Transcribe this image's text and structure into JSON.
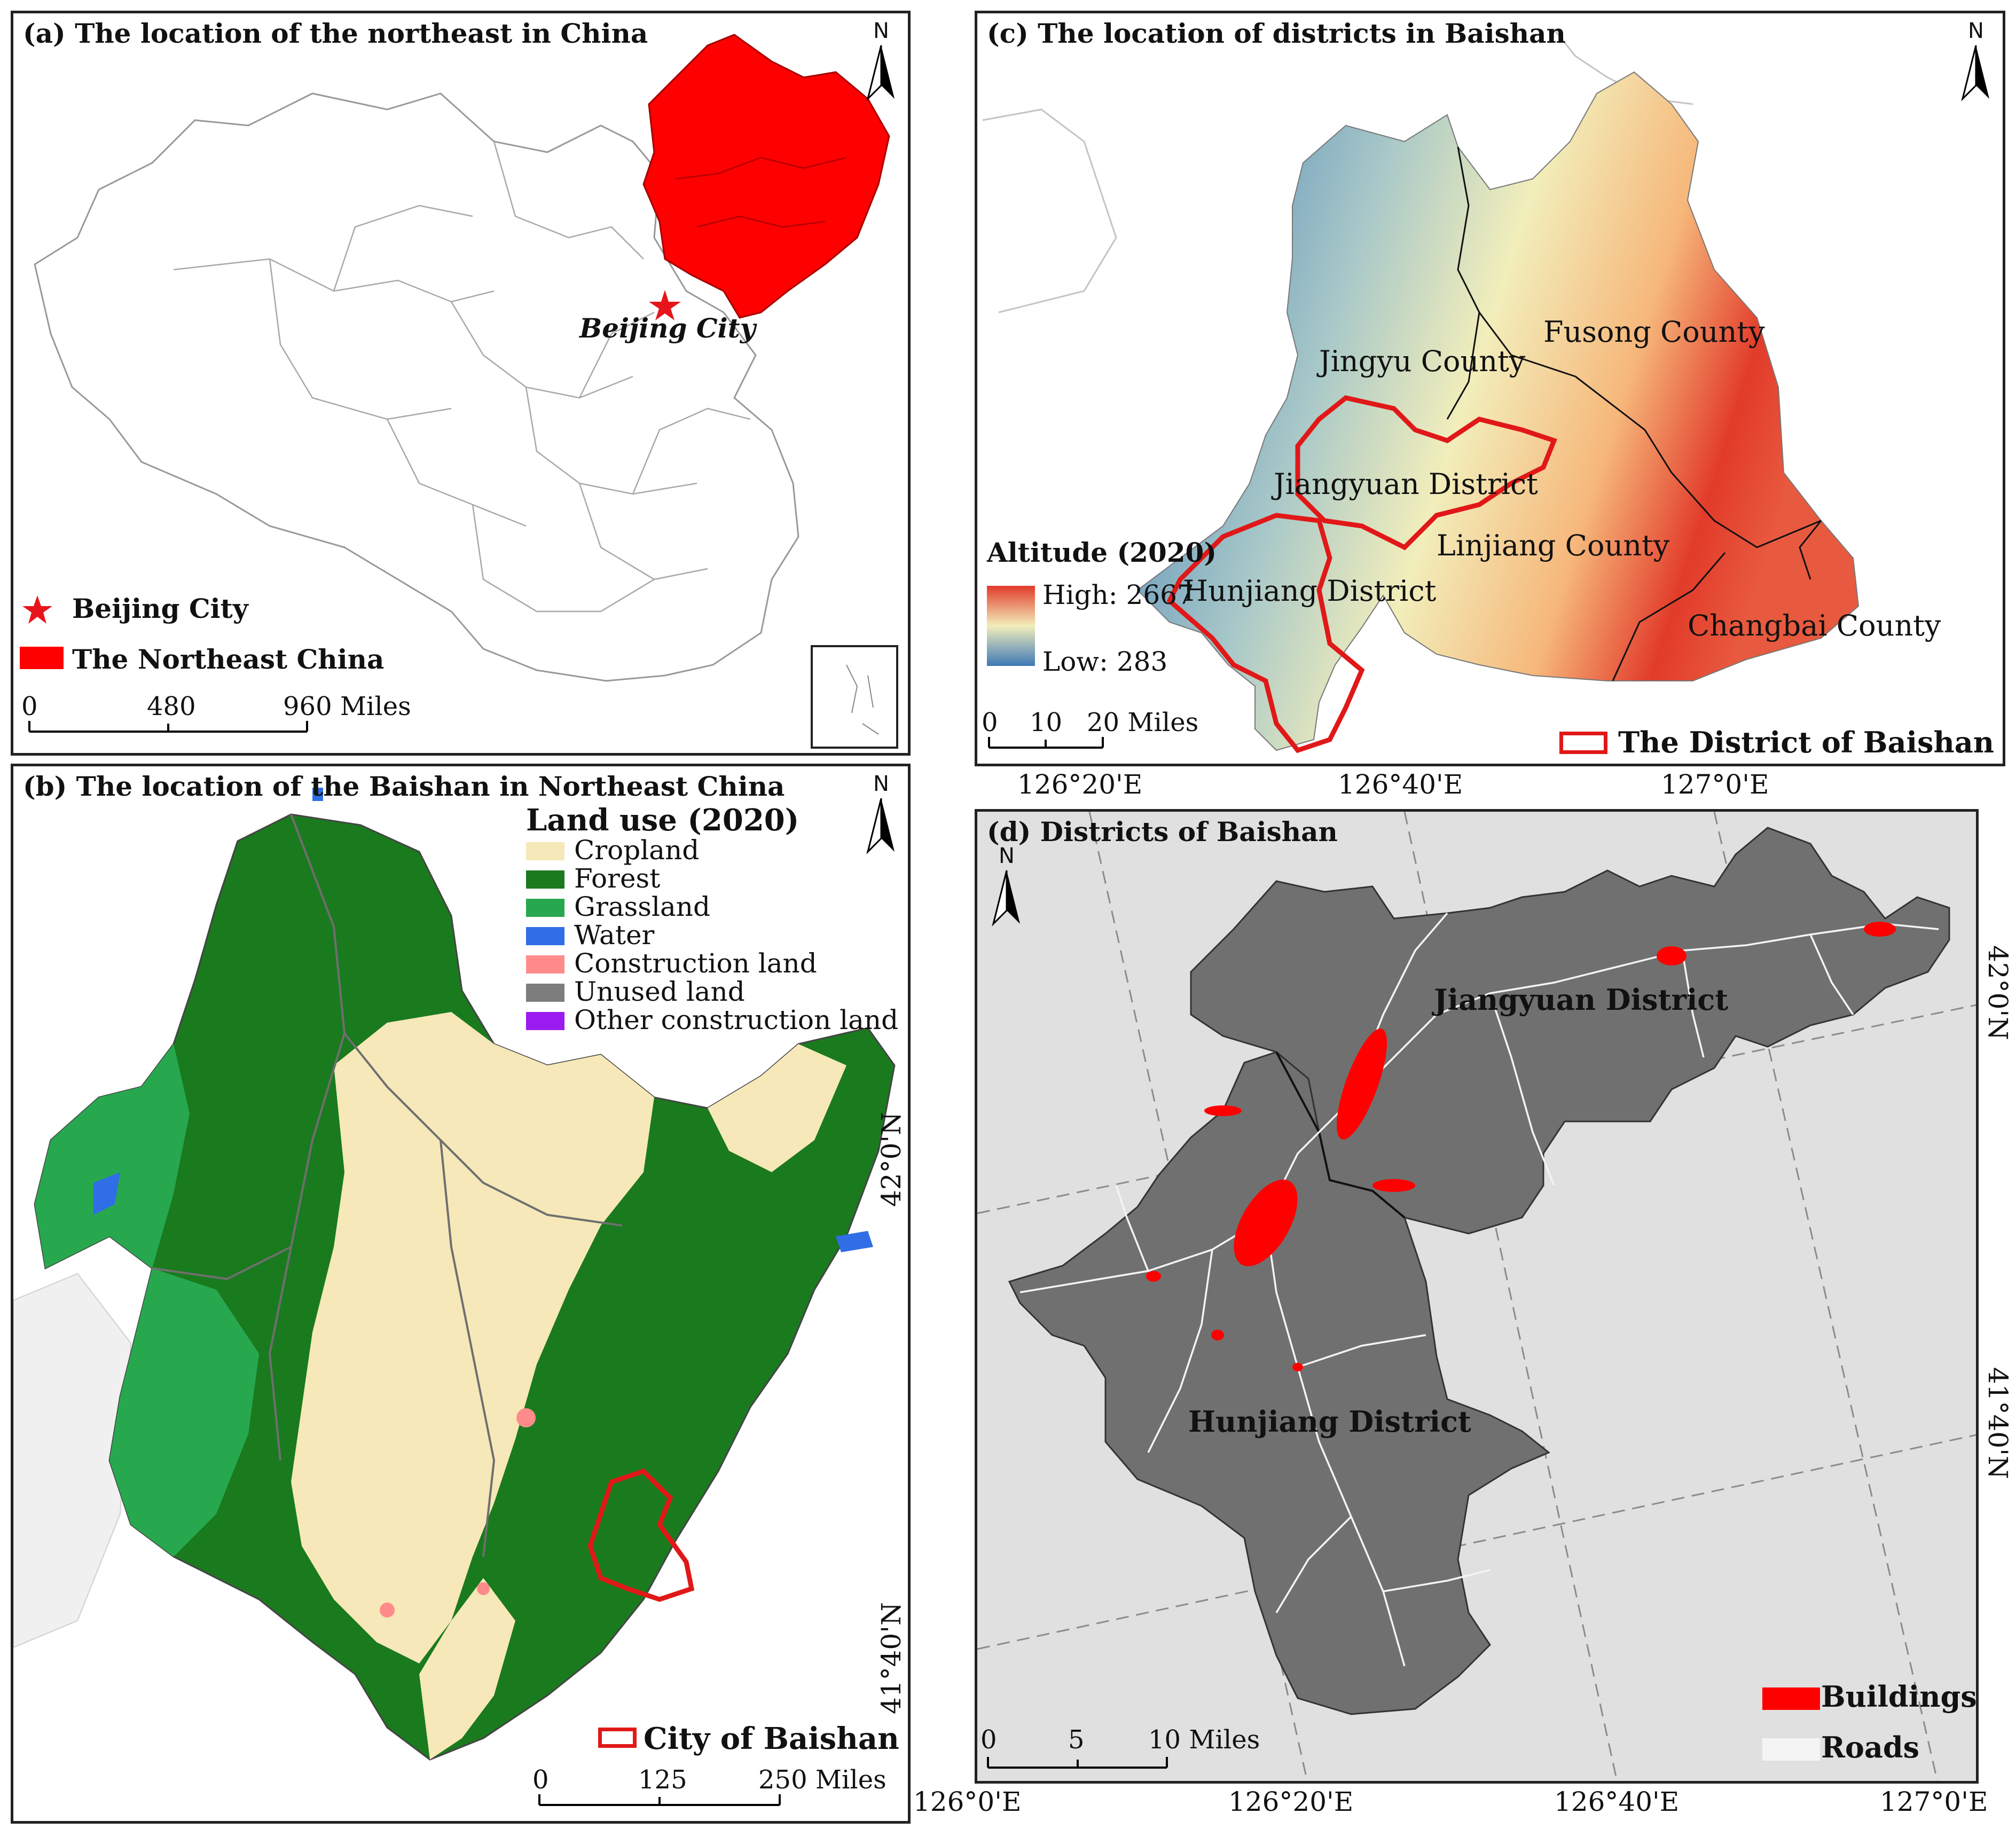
{
  "panel_a": {
    "title": "(a) The location of the northeast in China",
    "north": "N",
    "city_label": "Beijing City",
    "legend": [
      {
        "label": "Beijing City",
        "symbol": "star",
        "color": "#e8141b"
      },
      {
        "label": "The Northeast China",
        "symbol": "box",
        "color": "#ff0000"
      }
    ],
    "scale": {
      "ticks": [
        "0",
        "480",
        "960 Miles"
      ]
    }
  },
  "panel_b": {
    "title": "(b) The location of the Baishan in Northeast China",
    "north": "N",
    "legend_title": "Land use (2020)",
    "legend": [
      {
        "label": "Cropland",
        "color": "#f6e8b8"
      },
      {
        "label": "Forest",
        "color": "#1a7a1e"
      },
      {
        "label": "Grassland",
        "color": "#27a84f"
      },
      {
        "label": "Water",
        "color": "#2f6ee6"
      },
      {
        "label": "Construction land",
        "color": "#ff8b8b"
      },
      {
        "label": "Unused land",
        "color": "#7d7d7d"
      },
      {
        "label": "Other construction land",
        "color": "#9b1bf0"
      }
    ],
    "boundary_legend": "City of Baishan",
    "scale": {
      "ticks": [
        "0",
        "125",
        "250 Miles"
      ]
    }
  },
  "panel_c": {
    "title": "(c) The location of districts in Baishan",
    "north": "N",
    "legend_title": "Altitude (2020)",
    "high": "High: 2667",
    "low": "Low: 283",
    "districts": [
      "Fusong County",
      "Jingyu County",
      "Jiangyuan District",
      "Linjiang County",
      "Hunjiang District",
      "Changbai County"
    ],
    "boundary_legend": "The District of Baishan City",
    "scale": {
      "ticks": [
        "0",
        "10",
        "20 Miles"
      ]
    }
  },
  "panel_d": {
    "title": "(d) Districts of Baishan",
    "north": "N",
    "districts": [
      "Jiangyuan District",
      "Hunjiang District"
    ],
    "top_coords": [
      "126°20'E",
      "126°40'E",
      "127°0'E"
    ],
    "bottom_coords": [
      "126°0'E",
      "126°20'E",
      "126°40'E",
      "127°0'E"
    ],
    "left_coords": [
      "42°0'N",
      "41°40'N"
    ],
    "right_coords": [
      "42°0'N",
      "41°40'N"
    ],
    "legend": [
      {
        "label": "Buildings",
        "color": "#ff0000"
      },
      {
        "label": "Roads",
        "color": "#f4f4f4"
      }
    ],
    "scale": {
      "ticks": [
        "0",
        "5",
        "10 Miles"
      ]
    }
  },
  "colors": {
    "northeast": "#ff0000",
    "forest": "#1a7a1e",
    "cropland": "#f6e8b8",
    "boundary": "#e11818",
    "district_fill": "#707070"
  }
}
